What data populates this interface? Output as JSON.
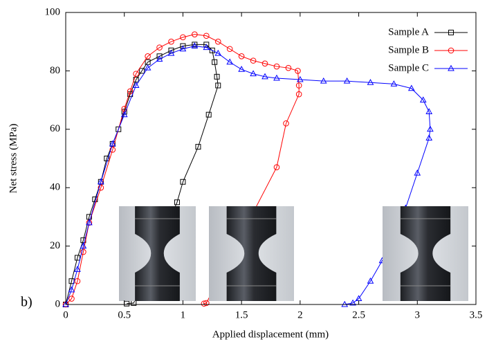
{
  "chart_data": {
    "type": "line",
    "panel_label": "b)",
    "x_label": "Applied displacement (mm)",
    "y_label": "Net stress (MPa)",
    "xlim": [
      0,
      3.5
    ],
    "ylim": [
      0,
      100
    ],
    "xticks": [
      0,
      0.5,
      1,
      1.5,
      2,
      2.5,
      3,
      3.5
    ],
    "yticks": [
      0,
      20,
      40,
      60,
      80,
      100
    ],
    "legend": "upper right",
    "series": [
      {
        "name": "Sample A",
        "color": "#000000",
        "marker": "square",
        "x": [
          0,
          0.05,
          0.1,
          0.15,
          0.2,
          0.25,
          0.3,
          0.35,
          0.4,
          0.45,
          0.5,
          0.55,
          0.6,
          0.65,
          0.7,
          0.8,
          0.9,
          1.0,
          1.1,
          1.2,
          1.25,
          1.27,
          1.29,
          1.3,
          1.22,
          1.13,
          1.0,
          0.95,
          0.58,
          0.52
        ],
        "values": [
          0,
          8,
          16,
          22,
          30,
          36,
          42,
          50,
          55,
          60,
          66,
          72,
          77,
          80,
          83,
          85,
          87,
          88.5,
          89,
          89,
          87,
          83,
          78,
          75,
          65,
          54,
          42,
          35,
          0.5,
          0.3
        ]
      },
      {
        "name": "Sample B",
        "color": "#ff0000",
        "marker": "circle",
        "x": [
          0,
          0.05,
          0.1,
          0.15,
          0.2,
          0.3,
          0.4,
          0.5,
          0.55,
          0.6,
          0.7,
          0.8,
          0.9,
          1.0,
          1.1,
          1.2,
          1.3,
          1.4,
          1.5,
          1.6,
          1.7,
          1.8,
          1.9,
          1.98,
          1.99,
          1.99,
          1.88,
          1.8,
          1.2,
          1.18
        ],
        "values": [
          0,
          2,
          8,
          18,
          28,
          40,
          53,
          67,
          73,
          79,
          85,
          88,
          90,
          91.5,
          92.5,
          92,
          90,
          87.5,
          85,
          83.5,
          82.5,
          81.5,
          81,
          80,
          75,
          72,
          62,
          47,
          0.5,
          0.3
        ]
      },
      {
        "name": "Sample C",
        "color": "#0000ff",
        "marker": "triangle",
        "x": [
          0,
          0.05,
          0.1,
          0.15,
          0.2,
          0.3,
          0.4,
          0.5,
          0.6,
          0.7,
          0.8,
          0.9,
          1.0,
          1.1,
          1.2,
          1.3,
          1.4,
          1.5,
          1.6,
          1.7,
          1.8,
          2.0,
          2.2,
          2.4,
          2.6,
          2.8,
          2.95,
          3.05,
          3.1,
          3.11,
          3.1,
          3.0,
          2.9,
          2.8,
          2.7,
          2.6,
          2.5,
          2.45,
          2.38
        ],
        "values": [
          0,
          5,
          12,
          20,
          28,
          42,
          55,
          65,
          75,
          81,
          84,
          86,
          87.5,
          88.5,
          88,
          86,
          83,
          80.5,
          79,
          78,
          77.5,
          77,
          76.5,
          76.5,
          76,
          75.5,
          74,
          70,
          66,
          60,
          57,
          45,
          33,
          22,
          15,
          8,
          2,
          0.5,
          0
        ]
      }
    ]
  }
}
